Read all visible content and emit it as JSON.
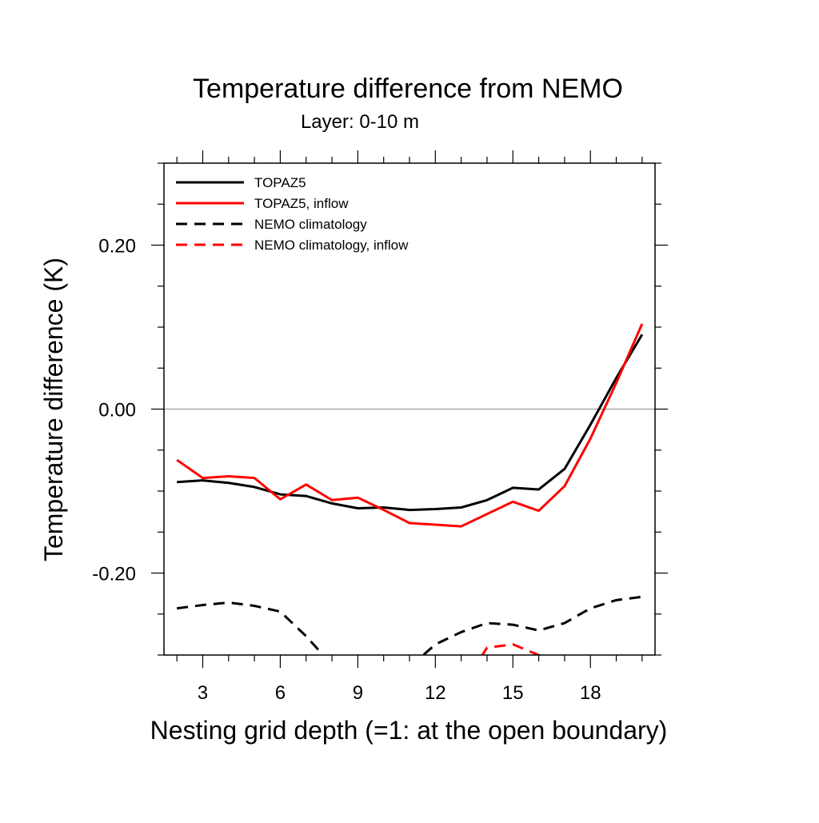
{
  "chart_data": {
    "type": "line",
    "title": "Temperature difference from NEMO",
    "subtitle": "Layer: 0-10 m",
    "xlabel": "Nesting grid depth (=1: at the open boundary)",
    "ylabel": "Temperature difference (K)",
    "xlim": [
      1.5,
      20.5
    ],
    "ylim": [
      -0.3,
      0.3
    ],
    "x_ticks": [
      3,
      6,
      9,
      12,
      15,
      18
    ],
    "x_tick_labels": [
      "3",
      "6",
      "9",
      "12",
      "15",
      "18"
    ],
    "y_ticks": [
      -0.2,
      0.0,
      0.2
    ],
    "y_tick_labels": [
      "-0.20",
      "0.00",
      "0.20"
    ],
    "zero_line": true,
    "legend_position": "top-left",
    "series": [
      {
        "name": "TOPAZ5",
        "color": "#000000",
        "dash": "solid",
        "x": [
          2,
          3,
          4,
          5,
          6,
          7,
          8,
          9,
          10,
          11,
          12,
          13,
          14,
          15,
          16,
          17,
          18,
          19,
          20
        ],
        "values": [
          -0.089,
          -0.087,
          -0.09,
          -0.095,
          -0.104,
          -0.106,
          -0.115,
          -0.121,
          -0.12,
          -0.123,
          -0.122,
          -0.12,
          -0.111,
          -0.096,
          -0.098,
          -0.073,
          -0.019,
          0.038,
          0.091
        ]
      },
      {
        "name": "TOPAZ5, inflow",
        "color": "#ff0000",
        "dash": "solid",
        "x": [
          2,
          3,
          4,
          5,
          6,
          7,
          8,
          9,
          10,
          11,
          12,
          13,
          14,
          15,
          16,
          17,
          18,
          19,
          20
        ],
        "values": [
          -0.062,
          -0.084,
          -0.082,
          -0.084,
          -0.11,
          -0.092,
          -0.111,
          -0.108,
          -0.123,
          -0.139,
          -0.141,
          -0.143,
          -0.128,
          -0.113,
          -0.124,
          -0.094,
          -0.036,
          0.032,
          0.104
        ]
      },
      {
        "name": "NEMO climatology",
        "color": "#000000",
        "dash": "dashed",
        "x": [
          2,
          3,
          4,
          5,
          6,
          7,
          8,
          9,
          10,
          11,
          12,
          13,
          14,
          15,
          16,
          17,
          18,
          19,
          20
        ],
        "values": [
          -0.243,
          -0.239,
          -0.236,
          -0.24,
          -0.247,
          -0.277,
          -0.312,
          -0.34,
          -0.345,
          -0.315,
          -0.287,
          -0.272,
          -0.261,
          -0.263,
          -0.27,
          -0.261,
          -0.243,
          -0.233,
          -0.229
        ]
      },
      {
        "name": "NEMO climatology, inflow",
        "color": "#ff0000",
        "dash": "dashed",
        "x": [
          13,
          14,
          15,
          16,
          17
        ],
        "values": [
          -0.34,
          -0.291,
          -0.287,
          -0.3,
          -0.34
        ]
      }
    ]
  }
}
